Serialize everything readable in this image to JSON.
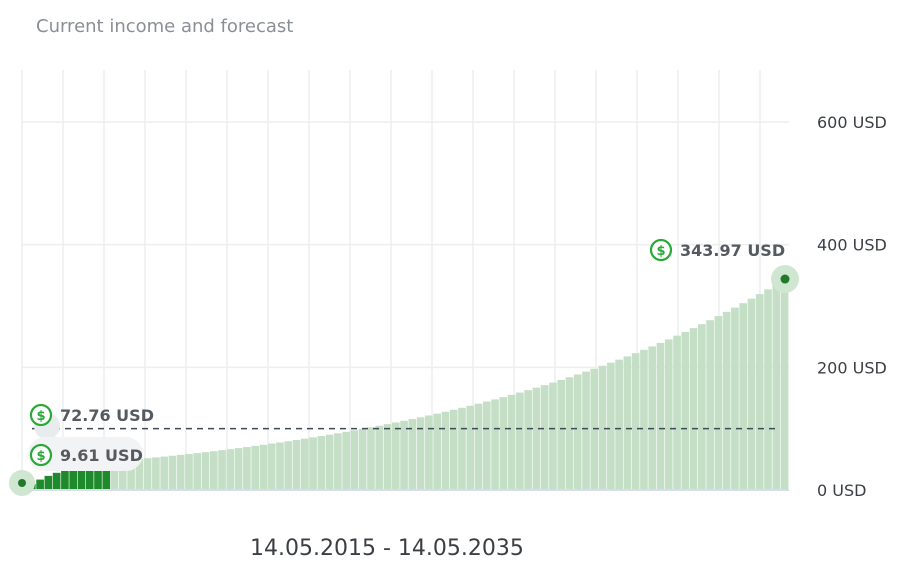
{
  "title": "Current income and forecast",
  "date_range": "14.05.2015 - 14.05.2035",
  "colors": {
    "forecast_bar": "#c5dfc7",
    "actual_bar": "#1f8a2c",
    "grid": "#eceeef",
    "baseline": "#d7dcee",
    "dashed_line": "#3e4a55",
    "marker_green": "#2aa838",
    "marker_dot": "#217a2b",
    "label_text": "#555a60",
    "axis_text": "#3b3f44"
  },
  "chart_data": {
    "type": "bar",
    "ylim": [
      0,
      600
    ],
    "y_ticks": [
      {
        "value": 0,
        "label": "0 USD"
      },
      {
        "value": 200,
        "label": "200 USD"
      },
      {
        "value": 400,
        "label": "400 USD"
      },
      {
        "value": 600,
        "label": "600 USD"
      }
    ],
    "grid": true,
    "series": [
      {
        "values": [
          9.61,
          17.0,
          23.0,
          28.0,
          32.0,
          35.0,
          38.0,
          41.0,
          43.0,
          45.0,
          47.0,
          48.0,
          49.0,
          50.5,
          51.86,
          53.15,
          54.48,
          55.86,
          57.27,
          58.72,
          60.22,
          61.76,
          63.33,
          64.95,
          66.62,
          68.32,
          70.08,
          71.87,
          73.72,
          75.61,
          77.55,
          79.53,
          81.57,
          83.65,
          85.79,
          87.97,
          90.21,
          92.5,
          94.84,
          97.24,
          99.7,
          102.21,
          104.78,
          107.41,
          110.1,
          112.86,
          115.67,
          118.56,
          121.51,
          124.52,
          127.61,
          130.77,
          134.01,
          137.32,
          140.71,
          144.18,
          147.74,
          151.38,
          155.11,
          158.93,
          162.84,
          166.85,
          170.95,
          175.15,
          179.45,
          183.86,
          188.37,
          193.0,
          197.73,
          202.57,
          207.53,
          212.61,
          217.8,
          223.11,
          228.55,
          234.12,
          239.81,
          245.64,
          251.6,
          257.7,
          263.94,
          270.33,
          276.87,
          283.55,
          290.4,
          297.4,
          304.57,
          311.9,
          319.39,
          327.06,
          335.0,
          343.97
        ]
      }
    ],
    "actual_count": 10,
    "reference_line": 100,
    "annotations": [
      {
        "label": "343.97 USD",
        "value": 343.97
      },
      {
        "label": "72.76 USD",
        "value": 72.76
      },
      {
        "label": "9.61 USD",
        "value": 9.61
      }
    ]
  }
}
